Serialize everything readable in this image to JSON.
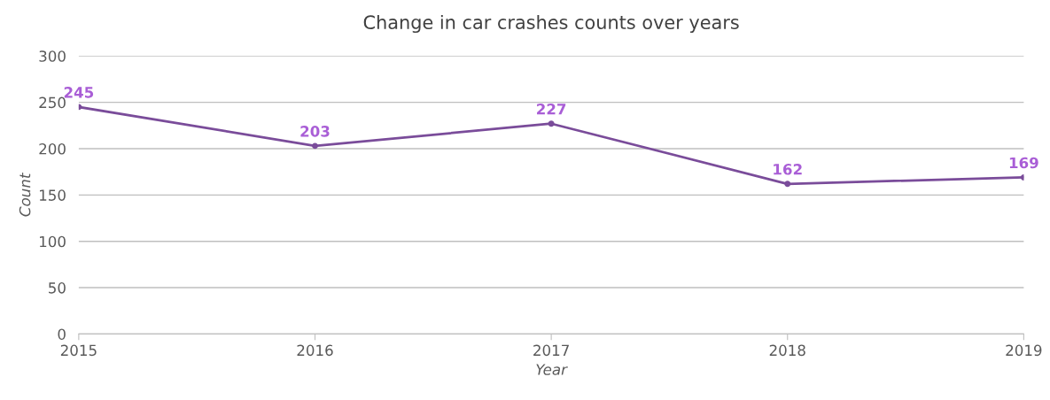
{
  "chart_data": {
    "type": "line",
    "title": "Change in car crashes counts over years",
    "xlabel": "Year",
    "ylabel": "Count",
    "x": [
      2015,
      2016,
      2017,
      2018,
      2019
    ],
    "series": [
      {
        "color": "#7a4c9a",
        "values": [
          245,
          203,
          227,
          162,
          169
        ]
      }
    ],
    "xlim": [
      2015,
      2019
    ],
    "xticks": [
      2015,
      2016,
      2017,
      2018,
      2019
    ],
    "ylim": [
      0,
      300
    ],
    "yticks": [
      0,
      50,
      100,
      150,
      200,
      250,
      300
    ],
    "grid": "y",
    "marker": "circle",
    "line_style": "solid",
    "data_labels": true,
    "legend": false
  }
}
